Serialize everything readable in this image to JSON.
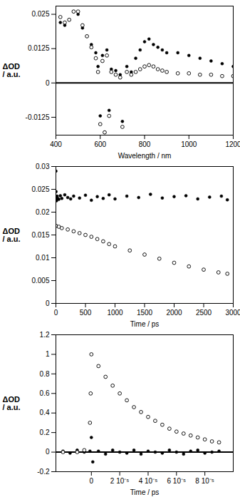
{
  "chart_data": [
    {
      "type": "scatter",
      "xlabel": "Wavelength / nm",
      "ylabel": "ΔOD\n/ a.u.",
      "xlim": [
        400,
        1200
      ],
      "xticks": [
        400,
        600,
        800,
        1000,
        1200
      ],
      "ylim": [
        -0.019,
        0.028
      ],
      "yticks": [
        -0.0125,
        0,
        0.0125,
        0.025
      ],
      "series": [
        {
          "marker": "filled",
          "color": "#000000",
          "x": [
            420,
            440,
            460,
            480,
            500,
            520,
            540,
            560,
            580,
            590,
            600,
            610,
            620,
            630,
            640,
            650,
            670,
            690,
            700,
            720,
            740,
            760,
            780,
            800,
            820,
            840,
            860,
            880,
            900,
            950,
            1000,
            1050,
            1100,
            1150,
            1200
          ],
          "values": [
            0.022,
            0.021,
            0.023,
            0.026,
            0.025,
            0.02,
            0.017,
            0.014,
            0.011,
            0.006,
            -0.012,
            0.01,
            -0.018,
            0.012,
            -0.01,
            0.005,
            0.0045,
            0.003,
            -0.014,
            0.006,
            0.004,
            0.009,
            0.012,
            0.015,
            0.016,
            0.014,
            0.013,
            0.012,
            0.011,
            0.011,
            0.01,
            0.009,
            0.008,
            0.007,
            0.006
          ]
        },
        {
          "marker": "open",
          "color": "#000000",
          "x": [
            420,
            440,
            460,
            480,
            500,
            520,
            540,
            560,
            580,
            590,
            600,
            610,
            620,
            630,
            640,
            650,
            670,
            690,
            700,
            720,
            740,
            760,
            780,
            800,
            820,
            840,
            860,
            880,
            900,
            950,
            1000,
            1050,
            1100,
            1150,
            1200
          ],
          "values": [
            0.024,
            0.022,
            0.023,
            0.026,
            0.026,
            0.021,
            0.017,
            0.013,
            0.009,
            0.004,
            -0.015,
            0.008,
            -0.018,
            0.01,
            -0.012,
            0.004,
            0.003,
            0.002,
            -0.016,
            0.004,
            0.003,
            0.004,
            0.005,
            0.006,
            0.0065,
            0.006,
            0.005,
            0.0045,
            0.004,
            0.0035,
            0.0035,
            0.003,
            0.003,
            0.0025,
            0.0025
          ]
        }
      ]
    },
    {
      "type": "scatter",
      "xlabel": "Time / ps",
      "ylabel": "ΔOD\n/ a.u.",
      "xlim": [
        0,
        3000
      ],
      "xticks": [
        0,
        500,
        1000,
        1500,
        2000,
        2500,
        3000
      ],
      "ylim": [
        0,
        0.03
      ],
      "yticks": [
        0,
        0.005,
        0.01,
        0.015,
        0.02,
        0.025,
        0.03
      ],
      "series": [
        {
          "marker": "filled",
          "color": "#000000",
          "x": [
            0,
            2,
            5,
            10,
            20,
            30,
            50,
            75,
            100,
            150,
            200,
            250,
            300,
            400,
            500,
            600,
            700,
            800,
            900,
            1000,
            1200,
            1400,
            1600,
            1800,
            2000,
            2200,
            2400,
            2600,
            2800,
            2900
          ],
          "values": [
            0.029,
            0.0245,
            0.023,
            0.0225,
            0.0235,
            0.023,
            0.0228,
            0.0236,
            0.023,
            0.0238,
            0.0232,
            0.0229,
            0.0235,
            0.0231,
            0.0237,
            0.0226,
            0.0234,
            0.023,
            0.0238,
            0.0229,
            0.0235,
            0.0232,
            0.0239,
            0.0231,
            0.0234,
            0.0236,
            0.0229,
            0.0233,
            0.0235,
            0.0227
          ]
        },
        {
          "marker": "open",
          "color": "#000000",
          "x": [
            0,
            50,
            100,
            200,
            300,
            400,
            500,
            600,
            700,
            800,
            900,
            1000,
            1250,
            1500,
            1750,
            2000,
            2250,
            2500,
            2750,
            2900
          ],
          "values": [
            0.017,
            0.0168,
            0.0165,
            0.0162,
            0.0158,
            0.0154,
            0.015,
            0.0146,
            0.0141,
            0.0136,
            0.013,
            0.0125,
            0.0116,
            0.0107,
            0.0098,
            0.0089,
            0.0081,
            0.0074,
            0.0068,
            0.0065
          ]
        }
      ]
    },
    {
      "type": "scatter",
      "xlabel": "Time / ps",
      "ylabel": "ΔOD\n/ a.u.",
      "xlim": [
        -2.5e-05,
        0.0001
      ],
      "xticks": [
        0,
        {
          "value": 2e-05,
          "label": "2 10⁻⁵"
        },
        {
          "value": 4e-05,
          "label": "4 10⁻⁵"
        },
        {
          "value": 6e-05,
          "label": "6 10⁻⁵"
        },
        {
          "value": 8e-05,
          "label": "8 10⁻⁵"
        }
      ],
      "ylim": [
        -0.2,
        1.2
      ],
      "yticks": [
        -0.2,
        0,
        0.2,
        0.4,
        0.6,
        0.8,
        1,
        1.2
      ],
      "series": [
        {
          "marker": "filled",
          "color": "#000000",
          "x": [
            -2e-05,
            -1.5e-05,
            -1e-05,
            -5e-06,
            -1e-06,
            0,
            1e-06,
            5e-06,
            1e-05,
            1.5e-05,
            2e-05,
            2.5e-05,
            3e-05,
            3.5e-05,
            4e-05,
            4.5e-05,
            5e-05,
            5.5e-05,
            6e-05,
            6.5e-05,
            7e-05,
            7.5e-05,
            8e-05,
            8.5e-05,
            9e-05
          ],
          "values": [
            0.01,
            -0.01,
            0.02,
            0,
            0.01,
            0.15,
            -0.1,
            0.01,
            -0.02,
            0.02,
            0,
            -0.01,
            0.02,
            -0.02,
            0.01,
            0,
            -0.01,
            0.02,
            0,
            -0.02,
            0.01,
            0.02,
            -0.01,
            0,
            0.01
          ]
        },
        {
          "marker": "open",
          "color": "#000000",
          "x": [
            -2e-05,
            -1e-05,
            -5e-06,
            -1e-06,
            -5e-07,
            0,
            5e-06,
            1e-05,
            1.5e-05,
            2e-05,
            2.5e-05,
            3e-05,
            3.5e-05,
            4e-05,
            4.5e-05,
            5e-05,
            5.5e-05,
            6e-05,
            6.5e-05,
            7e-05,
            7.5e-05,
            8e-05,
            8.5e-05,
            9e-05
          ],
          "values": [
            0,
            0,
            0.02,
            0.3,
            0.6,
            1.0,
            0.88,
            0.77,
            0.68,
            0.6,
            0.53,
            0.46,
            0.41,
            0.36,
            0.32,
            0.28,
            0.24,
            0.21,
            0.19,
            0.17,
            0.15,
            0.13,
            0.11,
            0.1
          ]
        }
      ]
    }
  ]
}
